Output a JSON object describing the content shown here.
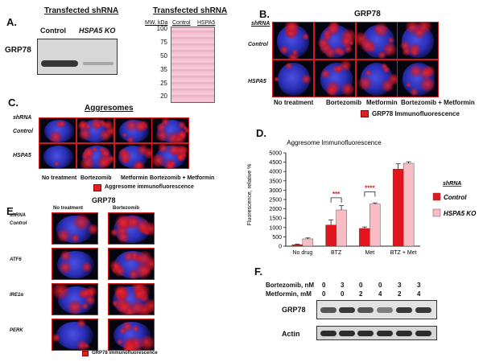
{
  "panel_a": {
    "letter": "A.",
    "title_left": "Transfected shRNA",
    "title_right": "Transfected shRNA",
    "control": "Control",
    "ko": "HSPA5 KO",
    "protein": "GRP78",
    "mw_header": "MW, kDa",
    "lane1": "Control",
    "lane2": "HSPA5",
    "mw_ticks": [
      "100",
      "75",
      "50",
      "35",
      "25",
      "20"
    ]
  },
  "panel_b": {
    "letter": "B.",
    "title": "GRP78",
    "shrna": "shRNA",
    "rows": [
      "Control",
      "HSPA5"
    ],
    "cols": [
      "No treatment",
      "Bortezomib",
      "Metformin",
      "Bortezomib + Metformin"
    ],
    "legend": "GRP78 Immunofluorescence"
  },
  "panel_c": {
    "letter": "C.",
    "title": "Aggresomes",
    "shrna": "shRNA",
    "rows": [
      "Control",
      "HSPA5"
    ],
    "cols": [
      "No treatment",
      "Bortezomib",
      "Metformin",
      "Bortezomib + Metformin"
    ],
    "legend": "Aggresome immunofluorescence"
  },
  "panel_d": {
    "letter": "D.",
    "legend_title": "shRNA",
    "sig1": "***",
    "sig2": "****"
  },
  "panel_e": {
    "letter": "E.",
    "title": "GRP78",
    "shrna": "shRNA",
    "cols": [
      "No treatment",
      "Bortezomib"
    ],
    "rows": [
      "Control",
      "ATF6",
      "IRE1α",
      "PERK"
    ],
    "legend": "GRP78 immunofluorescence"
  },
  "panel_f": {
    "letter": "F.",
    "row1_label": "Bortezomib, nM",
    "row1_values": [
      "0",
      "3",
      "0",
      "0",
      "3",
      "3"
    ],
    "row2_label": "Metformin, mM",
    "row2_values": [
      "0",
      "0",
      "2",
      "4",
      "2",
      "4"
    ],
    "blot1": "GRP78",
    "blot2": "Actin"
  },
  "chart_data": {
    "type": "bar",
    "title": "Aggresome Immunofluorescence",
    "ylabel": "Fluorescence, relative %",
    "xlabel": "",
    "categories": [
      "No drug",
      "BTZ",
      "Met",
      "BTZ + Met"
    ],
    "ylim": [
      0,
      5000
    ],
    "yticks": [
      0,
      500,
      1000,
      1500,
      2000,
      2500,
      3000,
      3500,
      4000,
      4500,
      5000
    ],
    "series": [
      {
        "name": "Control",
        "color": "#e3141b",
        "values": [
          80,
          1130,
          950,
          4130
        ],
        "errors": [
          30,
          280,
          80,
          280
        ]
      },
      {
        "name": "HSPA5 KO",
        "color": "#f7bcc4",
        "values": [
          390,
          1940,
          2260,
          4440
        ],
        "errors": [
          50,
          230,
          60,
          80
        ]
      }
    ],
    "legend_position": "right",
    "grid": false
  }
}
